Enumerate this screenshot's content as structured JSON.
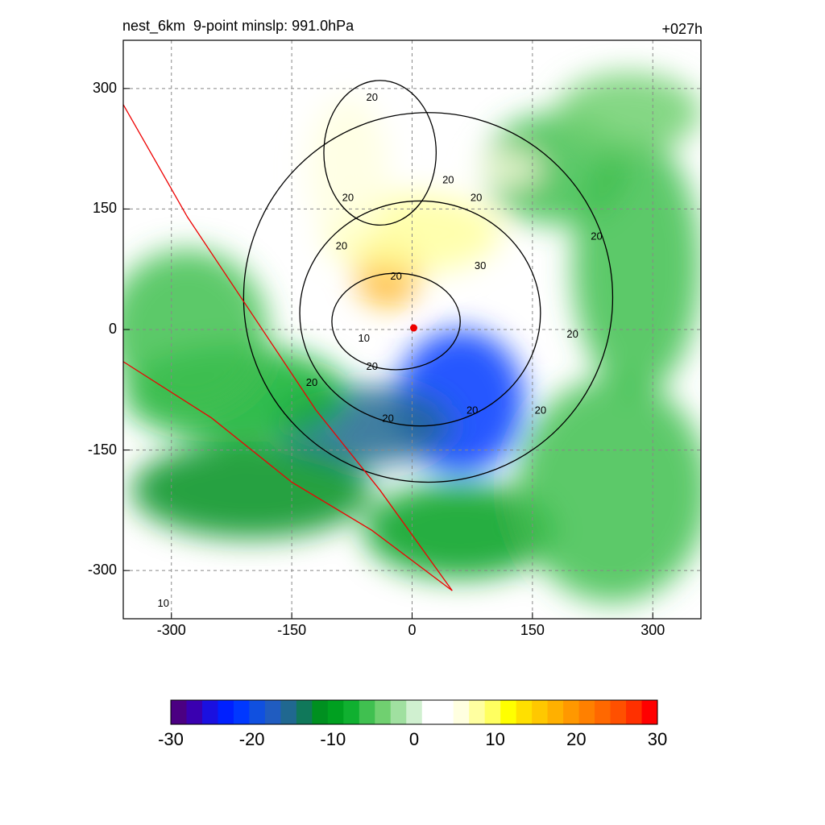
{
  "header": {
    "title": "nest_6km  9-point minslp: 991.0hPa",
    "forecast_hour": "+027h"
  },
  "chart_data": {
    "type": "heatmap",
    "title": "nest_6km  9-point minslp: 991.0hPa",
    "annotation_right": "+027h",
    "xlabel": "",
    "ylabel": "",
    "xlim": [
      -360,
      360
    ],
    "ylim": [
      -360,
      360
    ],
    "x_ticks": [
      -300,
      -150,
      0,
      150,
      300
    ],
    "y_ticks": [
      300,
      150,
      0,
      -150,
      -300
    ],
    "grid": true,
    "storm_center": [
      2,
      2
    ],
    "colorbar": {
      "min": -30,
      "max": 30,
      "ticks": [
        -30,
        -20,
        -10,
        0,
        10,
        20,
        30
      ],
      "colors": [
        "#4b0082",
        "#3a00b0",
        "#1a10e0",
        "#0020ff",
        "#0038ff",
        "#1050e0",
        "#205cc0",
        "#206890",
        "#10785a",
        "#009020",
        "#00a020",
        "#10b030",
        "#40c050",
        "#70d070",
        "#a0e0a0",
        "#d0f0d0",
        "#ffffff",
        "#ffffff",
        "#ffffe0",
        "#ffffa0",
        "#ffff60",
        "#ffff00",
        "#ffe000",
        "#ffc800",
        "#ffb000",
        "#ff9800",
        "#ff8000",
        "#ff6800",
        "#ff5000",
        "#ff3000",
        "#ff0000"
      ]
    },
    "blobs": [
      {
        "cx": 60,
        "cy": -90,
        "rx": 80,
        "ry": 90,
        "v": -22
      },
      {
        "cx": -60,
        "cy": -120,
        "rx": 110,
        "ry": 50,
        "v": -17
      },
      {
        "cx": -200,
        "cy": -200,
        "rx": 150,
        "ry": 60,
        "v": -12
      },
      {
        "cx": -220,
        "cy": -80,
        "rx": 140,
        "ry": 60,
        "v": -9
      },
      {
        "cx": -280,
        "cy": 0,
        "rx": 100,
        "ry": 100,
        "v": -7
      },
      {
        "cx": 60,
        "cy": -250,
        "rx": 120,
        "ry": 60,
        "v": -10
      },
      {
        "cx": 250,
        "cy": -200,
        "rx": 120,
        "ry": 140,
        "v": -7
      },
      {
        "cx": 280,
        "cy": 80,
        "rx": 80,
        "ry": 160,
        "v": -7
      },
      {
        "cx": 180,
        "cy": 200,
        "rx": 90,
        "ry": 70,
        "v": -6
      },
      {
        "cx": 270,
        "cy": 270,
        "rx": 90,
        "ry": 50,
        "v": -5
      },
      {
        "cx": -30,
        "cy": 70,
        "rx": 40,
        "ry": 40,
        "v": 17
      },
      {
        "cx": 0,
        "cy": 120,
        "rx": 110,
        "ry": 50,
        "v": 8
      },
      {
        "cx": -80,
        "cy": 200,
        "rx": 50,
        "ry": 90,
        "v": 5
      },
      {
        "cx": 120,
        "cy": 200,
        "rx": 40,
        "ry": 20,
        "v": 6
      }
    ],
    "contour_labels": [
      {
        "x": -50,
        "y": 285,
        "text": "20"
      },
      {
        "x": 45,
        "y": 182,
        "text": "20"
      },
      {
        "x": 80,
        "y": 160,
        "text": "20"
      },
      {
        "x": -80,
        "y": 160,
        "text": "20"
      },
      {
        "x": -88,
        "y": 100,
        "text": "20"
      },
      {
        "x": -20,
        "y": 62,
        "text": "20"
      },
      {
        "x": 85,
        "y": 75,
        "text": "30"
      },
      {
        "x": 230,
        "y": 112,
        "text": "20"
      },
      {
        "x": 200,
        "y": -10,
        "text": "20"
      },
      {
        "x": -60,
        "y": -15,
        "text": "10"
      },
      {
        "x": -50,
        "y": -50,
        "text": "20"
      },
      {
        "x": -125,
        "y": -70,
        "text": "20"
      },
      {
        "x": -30,
        "y": -115,
        "text": "20"
      },
      {
        "x": 75,
        "y": -105,
        "text": "20"
      },
      {
        "x": 160,
        "y": -105,
        "text": "20"
      },
      {
        "x": -310,
        "y": -345,
        "text": "10"
      }
    ]
  }
}
